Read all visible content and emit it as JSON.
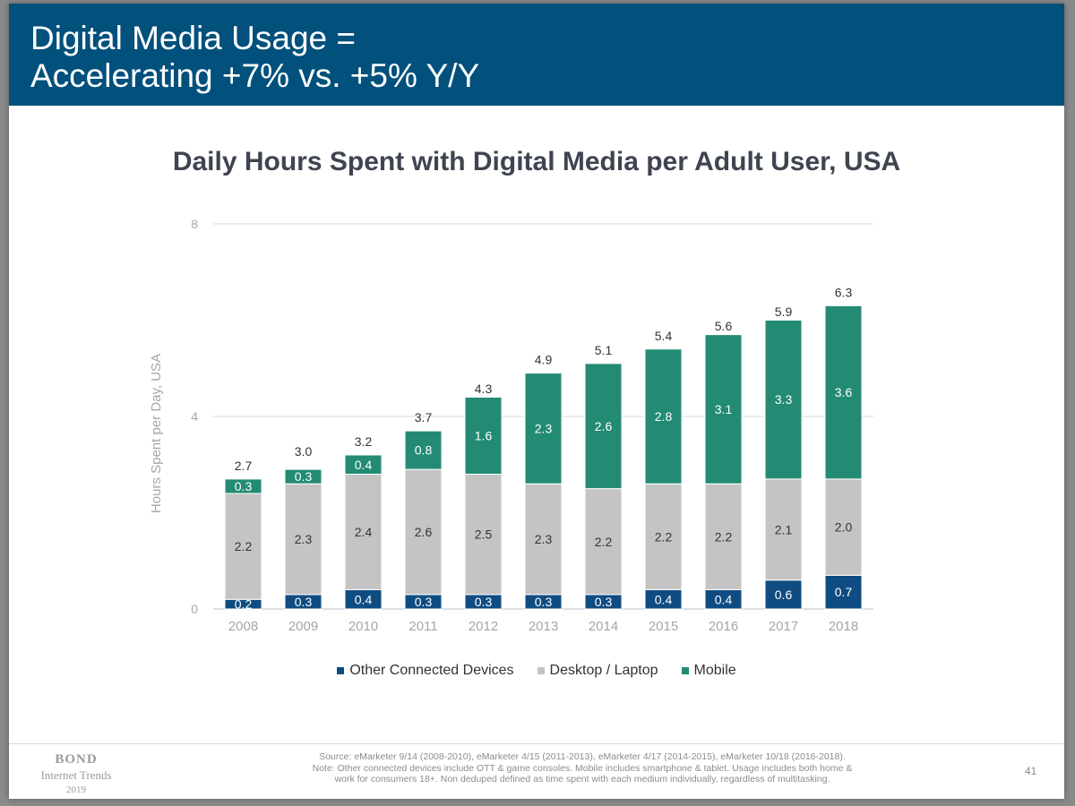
{
  "header": {
    "title_line1": "Digital Media Usage =",
    "title_line2": "Accelerating +7% vs. +5% Y/Y"
  },
  "chart_data": {
    "type": "bar",
    "stacked": true,
    "title": "Daily Hours Spent with Digital Media per Adult User, USA",
    "xlabel": "",
    "ylabel": "Hours Spent per Day, USA",
    "ylim": [
      0,
      8
    ],
    "yticks": [
      "0",
      "4",
      "8"
    ],
    "grid": true,
    "legend_position": "bottom",
    "categories": [
      "2008",
      "2009",
      "2010",
      "2011",
      "2012",
      "2013",
      "2014",
      "2015",
      "2016",
      "2017",
      "2018"
    ],
    "series": [
      {
        "name": "Other Connected Devices",
        "color": "#0f4c81",
        "label_color": "#ffffff",
        "values": [
          0.2,
          0.3,
          0.4,
          0.3,
          0.3,
          0.3,
          0.3,
          0.4,
          0.4,
          0.6,
          0.7
        ],
        "labels": [
          "0.2",
          "0.3",
          "0.4",
          "0.3",
          "0.3",
          "0.3",
          "0.3",
          "0.4",
          "0.4",
          "0.6",
          "0.7"
        ]
      },
      {
        "name": "Desktop / Laptop",
        "color": "#c4c4c4",
        "label_color": "#333333",
        "values": [
          2.2,
          2.3,
          2.4,
          2.6,
          2.5,
          2.3,
          2.2,
          2.2,
          2.2,
          2.1,
          2.0
        ],
        "labels": [
          "2.2",
          "2.3",
          "2.4",
          "2.6",
          "2.5",
          "2.3",
          "2.2",
          "2.2",
          "2.2",
          "2.1",
          "2.0"
        ]
      },
      {
        "name": "Mobile",
        "color": "#238b74",
        "label_color": "#ffffff",
        "values": [
          0.3,
          0.3,
          0.4,
          0.8,
          1.6,
          2.3,
          2.6,
          2.8,
          3.1,
          3.3,
          3.6
        ],
        "labels": [
          "0.3",
          "0.3",
          "0.4",
          "0.8",
          "1.6",
          "2.3",
          "2.6",
          "2.8",
          "3.1",
          "3.3",
          "3.6"
        ]
      }
    ],
    "totals": [
      2.7,
      3.0,
      3.2,
      3.7,
      4.3,
      4.9,
      5.1,
      5.4,
      5.6,
      5.9,
      6.3
    ],
    "total_labels": [
      "2.7",
      "3.0",
      "3.2",
      "3.7",
      "4.3",
      "4.9",
      "5.1",
      "5.4",
      "5.6",
      "5.9",
      "6.3"
    ]
  },
  "legend": {
    "items": [
      "Other Connected Devices",
      "Desktop / Laptop",
      "Mobile"
    ]
  },
  "footer": {
    "logo_name": "BOND",
    "logo_sub": "Internet Trends",
    "logo_year": "2019",
    "source_line1": "Source: eMarketer 9/14 (2008-2010), eMarketer 4/15 (2011-2013), eMarketer 4/17 (2014-2015), eMarketer 10/18 (2016-2018).",
    "source_line2": "Note: Other connected devices include OTT & game consoles. Mobile includes smartphone & tablet. Usage includes both home &",
    "source_line3": "work for consumers 18+. Non deduped defined as time spent with each medium individually, regardless of multitasking.",
    "page_number": "41"
  }
}
